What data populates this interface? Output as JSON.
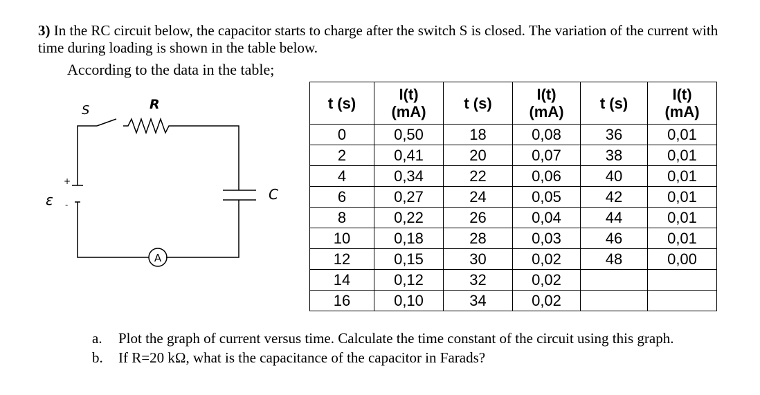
{
  "question": {
    "number": "3)",
    "text": "In the RC circuit below, the capacitor starts to charge after the switch S is closed. The variation of the current with time during loading is shown in the table below."
  },
  "intro": "According to the data in the table;",
  "circuit": {
    "switch": "S",
    "resistor": "R",
    "capacitor": "C",
    "source": "ε",
    "plus": "+",
    "minus": "-",
    "ammeter": "A"
  },
  "table": {
    "headers": [
      [
        "t (s)"
      ],
      [
        "I(t)",
        "(mA)"
      ],
      [
        "t (s)"
      ],
      [
        "I(t)",
        "(mA)"
      ],
      [
        "t (s)"
      ],
      [
        "I(t)",
        "(mA)"
      ]
    ],
    "rows": [
      [
        "0",
        "0,50",
        "18",
        "0,08",
        "36",
        "0,01"
      ],
      [
        "2",
        "0,41",
        "20",
        "0,07",
        "38",
        "0,01"
      ],
      [
        "4",
        "0,34",
        "22",
        "0,06",
        "40",
        "0,01"
      ],
      [
        "6",
        "0,27",
        "24",
        "0,05",
        "42",
        "0,01"
      ],
      [
        "8",
        "0,22",
        "26",
        "0,04",
        "44",
        "0,01"
      ],
      [
        "10",
        "0,18",
        "28",
        "0,03",
        "46",
        "0,01"
      ],
      [
        "12",
        "0,15",
        "30",
        "0,02",
        "48",
        "0,00"
      ],
      [
        "14",
        "0,12",
        "32",
        "0,02",
        null,
        null
      ],
      [
        "16",
        "0,10",
        "34",
        "0,02",
        null,
        null
      ]
    ]
  },
  "tasks": [
    {
      "label": "a.",
      "text": "Plot the graph of current versus time. Calculate the time constant of the circuit using this graph."
    },
    {
      "label": "b.",
      "text": "If R=20 kΩ, what is the capacitance of the capacitor in Farads?"
    }
  ]
}
